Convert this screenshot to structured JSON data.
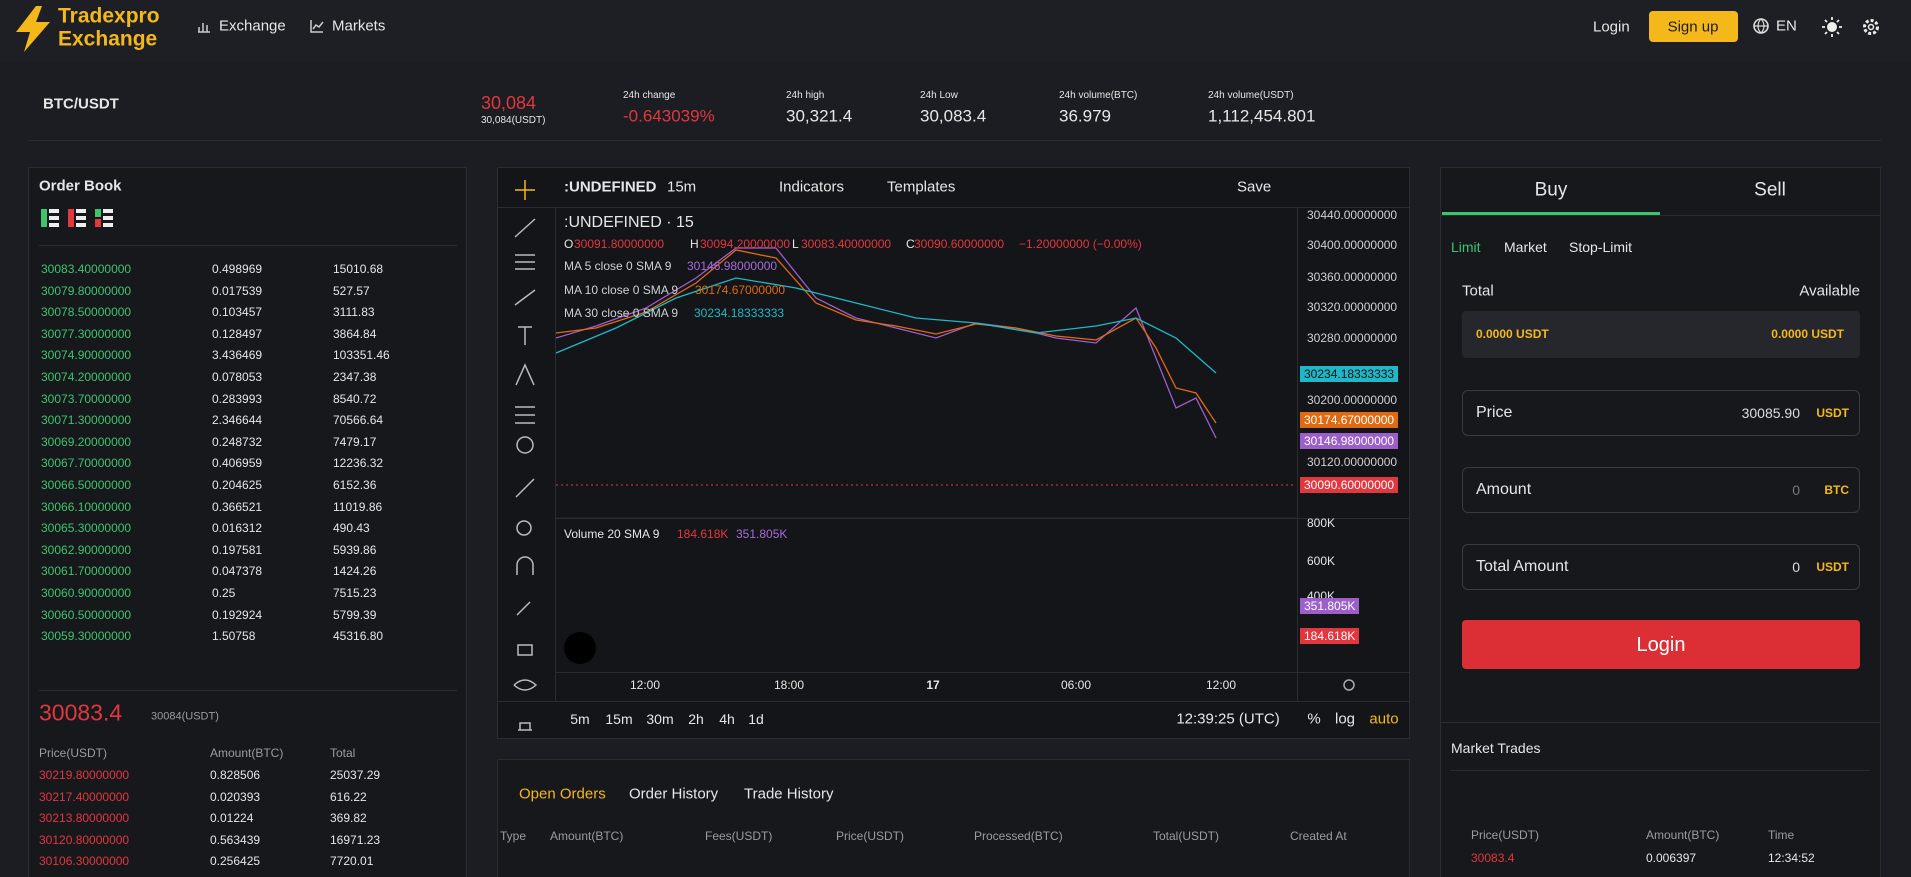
{
  "header": {
    "brand": [
      "Tradexpro",
      "Exchange"
    ],
    "nav": [
      "Exchange",
      "Markets"
    ],
    "login": "Login",
    "signup": "Sign up",
    "language": "EN"
  },
  "ticker": {
    "pair": "BTC/USDT",
    "price": "30,084",
    "price_usdt": "30,084(USDT)",
    "stats": [
      {
        "label": "24h change",
        "value": "-0.643039%"
      },
      {
        "label": "24h high",
        "value": "30,321.4"
      },
      {
        "label": "24h Low",
        "value": "30,083.4"
      },
      {
        "label": "24h volume(BTC)",
        "value": "36.979"
      },
      {
        "label": "24h volume(USDT)",
        "value": "1,112,454.801"
      }
    ]
  },
  "order_book": {
    "title": "Order Book",
    "bids": [
      [
        "30083.40000000",
        "0.498969",
        "15010.68"
      ],
      [
        "30079.80000000",
        "0.017539",
        "527.57"
      ],
      [
        "30078.50000000",
        "0.103457",
        "3111.83"
      ],
      [
        "30077.30000000",
        "0.128497",
        "3864.84"
      ],
      [
        "30074.90000000",
        "3.436469",
        "103351.46"
      ],
      [
        "30074.20000000",
        "0.078053",
        "2347.38"
      ],
      [
        "30073.70000000",
        "0.283993",
        "8540.72"
      ],
      [
        "30071.30000000",
        "2.346644",
        "70566.64"
      ],
      [
        "30069.20000000",
        "0.248732",
        "7479.17"
      ],
      [
        "30067.70000000",
        "0.406959",
        "12236.32"
      ],
      [
        "30066.50000000",
        "0.204625",
        "6152.36"
      ],
      [
        "30066.10000000",
        "0.366521",
        "11019.86"
      ],
      [
        "30065.30000000",
        "0.016312",
        "490.43"
      ],
      [
        "30062.90000000",
        "0.197581",
        "5939.86"
      ],
      [
        "30061.70000000",
        "0.047378",
        "1424.26"
      ],
      [
        "30060.90000000",
        "0.25",
        "7515.23"
      ],
      [
        "30060.50000000",
        "0.192924",
        "5799.39"
      ],
      [
        "30059.30000000",
        "1.50758",
        "45316.80"
      ]
    ],
    "last_price": "30083.4",
    "last_price_usdt": "30084(USDT)",
    "columns": [
      "Price(USDT)",
      "Amount(BTC)",
      "Total"
    ],
    "asks": [
      [
        "30219.80000000",
        "0.828506",
        "25037.29"
      ],
      [
        "30217.40000000",
        "0.020393",
        "616.22"
      ],
      [
        "30213.80000000",
        "0.01224",
        "369.82"
      ],
      [
        "30120.80000000",
        "0.563439",
        "16971.23"
      ],
      [
        "30106.30000000",
        "0.256425",
        "7720.01"
      ]
    ]
  },
  "chart": {
    "symbol": ":UNDEFINED",
    "interval": "15m",
    "indicators": "Indicators",
    "templates": "Templates",
    "save": "Save",
    "legend_title": ":UNDEFINED · 15",
    "ohlc": [
      {
        "label": "O",
        "value": "30091.80000000"
      },
      {
        "label": "H",
        "value": "30094.20000000"
      },
      {
        "label": "L",
        "value": "30083.40000000"
      },
      {
        "label": "C",
        "value": "30090.60000000"
      }
    ],
    "change": "−1.20000000 (−0.00%)",
    "ma": [
      {
        "label": "MA 5 close 0 SMA 9",
        "value": "30146.98000000"
      },
      {
        "label": "MA 10 close 0 SMA 9",
        "value": "30174.67000000"
      },
      {
        "label": "MA 30 close 0 SMA 9",
        "value": "30234.18333333"
      }
    ],
    "price_axis": [
      "30440.00000000",
      "30400.00000000",
      "30360.00000000",
      "30320.00000000",
      "30280.00000000",
      "30200.00000000",
      "30120.00000000"
    ],
    "price_tags": [
      "30234.18333333",
      "30174.67000000",
      "30146.98000000",
      "30090.60000000"
    ],
    "volume": {
      "label": "Volume 20 SMA 9",
      "values": [
        "184.618K",
        "351.805K"
      ],
      "axis": [
        "800K",
        "600K",
        "400K"
      ],
      "tags": [
        "351.805K",
        "184.618K"
      ]
    },
    "time_axis": [
      "12:00",
      "18:00",
      "17",
      "06:00",
      "12:00"
    ],
    "intervals": [
      "5m",
      "15m",
      "30m",
      "2h",
      "4h",
      "1d"
    ],
    "clock": "12:39:25 (UTC)",
    "scale_options": [
      "%",
      "log",
      "auto"
    ]
  },
  "orders": {
    "tabs": [
      "Open Orders",
      "Order History",
      "Trade History"
    ],
    "columns": [
      "Type",
      "Amount(BTC)",
      "Fees(USDT)",
      "Price(USDT)",
      "Processed(BTC)",
      "Total(USDT)",
      "Created At"
    ]
  },
  "trade": {
    "sides": [
      "Buy",
      "Sell"
    ],
    "order_types": [
      "Limit",
      "Market",
      "Stop-Limit"
    ],
    "balance_labels": [
      "Total",
      "Available"
    ],
    "balances": [
      "0.0000 USDT",
      "0.0000 USDT"
    ],
    "fields": [
      {
        "label": "Price",
        "value": "30085.90",
        "unit": "USDT"
      },
      {
        "label": "Amount",
        "value": "0",
        "unit": "BTC"
      },
      {
        "label": "Total Amount",
        "value": "0",
        "unit": "USDT"
      }
    ],
    "button": "Login",
    "market_trades": {
      "title": "Market Trades",
      "columns": [
        "Price(USDT)",
        "Amount(BTC)",
        "Time"
      ],
      "rows": [
        [
          "30083.4",
          "0.006397",
          "12:34:52"
        ]
      ]
    }
  }
}
